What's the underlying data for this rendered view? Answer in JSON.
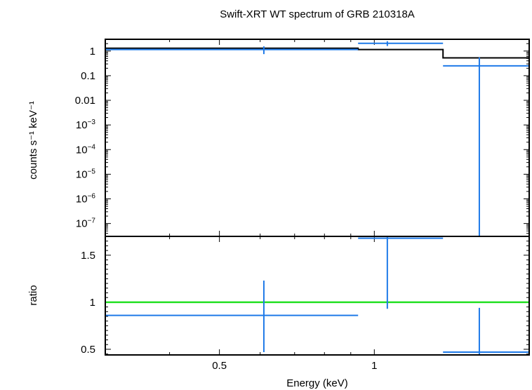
{
  "chart_data": [
    {
      "type": "scatter",
      "panel": "top",
      "title": "Swift-XRT WT spectrum of GRB 210318A",
      "xlabel": "",
      "ylabel": "counts s⁻¹ keV⁻¹",
      "xscale": "log",
      "yscale": "log",
      "xlim": [
        0.3,
        2.0
      ],
      "ylim": [
        3e-08,
        3.0
      ],
      "yticks": [
        {
          "value": 1,
          "label": "1"
        },
        {
          "value": 0.1,
          "label": "0.1"
        },
        {
          "value": 0.01,
          "label": "0.01"
        },
        {
          "value": 0.001,
          "base": "10",
          "exp": "−3"
        },
        {
          "value": 0.0001,
          "base": "10",
          "exp": "−4"
        },
        {
          "value": 1e-05,
          "base": "10",
          "exp": "−5"
        },
        {
          "value": 1e-06,
          "base": "10",
          "exp": "−6"
        },
        {
          "value": 1e-07,
          "base": "10",
          "exp": "−7"
        }
      ],
      "series": [
        {
          "kind": "data",
          "color": "#1f7ae8",
          "points": [
            {
              "x": 0.61,
              "xlo": 0.3,
              "xhi": 0.93,
              "y": 1.15,
              "ylo": 0.75,
              "yhi": 1.55
            },
            {
              "x": 1.06,
              "xlo": 0.93,
              "xhi": 1.36,
              "y": 2.05,
              "ylo": 1.6,
              "yhi": 2.5
            },
            {
              "x": 1.6,
              "xlo": 1.36,
              "xhi": 2.0,
              "y": 0.25,
              "ylo": 3e-08,
              "yhi": 0.55
            }
          ]
        },
        {
          "kind": "model",
          "color": "#000000",
          "steps": [
            {
              "xlo": 0.3,
              "xhi": 0.93,
              "y": 1.3
            },
            {
              "xlo": 0.93,
              "xhi": 1.36,
              "y": 1.15
            },
            {
              "xlo": 1.36,
              "xhi": 2.0,
              "y": 0.53
            }
          ]
        }
      ]
    },
    {
      "type": "scatter",
      "panel": "bottom",
      "xlabel": "Energy (keV)",
      "ylabel": "ratio",
      "xscale": "log",
      "yscale": "linear",
      "xlim": [
        0.3,
        2.0
      ],
      "ylim": [
        0.44,
        1.7
      ],
      "xticks": [
        {
          "value": 0.5,
          "label": "0.5"
        },
        {
          "value": 1,
          "label": "1"
        }
      ],
      "yticks": [
        {
          "value": 0.5,
          "label": "0.5"
        },
        {
          "value": 1,
          "label": "1"
        },
        {
          "value": 1.5,
          "label": "1.5"
        }
      ],
      "reference_line": {
        "y": 1,
        "color": "#22e022"
      },
      "series": [
        {
          "kind": "data",
          "color": "#1f7ae8",
          "points": [
            {
              "x": 0.61,
              "xlo": 0.3,
              "xhi": 0.93,
              "y": 0.86,
              "ylo": 0.47,
              "yhi": 1.23
            },
            {
              "x": 1.06,
              "xlo": 0.93,
              "xhi": 1.36,
              "y": 1.68,
              "ylo": 0.93,
              "yhi": 1.7
            },
            {
              "x": 1.6,
              "xlo": 1.36,
              "xhi": 2.0,
              "y": 0.47,
              "ylo": 0.44,
              "yhi": 0.94
            }
          ]
        }
      ]
    }
  ]
}
